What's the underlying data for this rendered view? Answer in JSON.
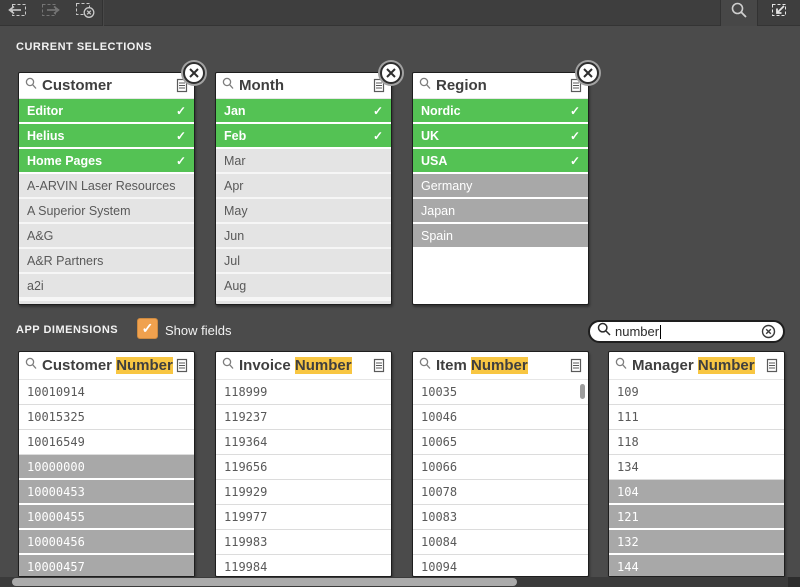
{
  "toolbar": {
    "icons": [
      {
        "name": "step-back-selection-icon",
        "enabled": true
      },
      {
        "name": "step-forward-selection-icon",
        "enabled": false
      },
      {
        "name": "clear-all-selections-icon",
        "enabled": true
      },
      {
        "name": "search-icon",
        "enabled": true
      },
      {
        "name": "selections-tool-icon",
        "enabled": true
      }
    ]
  },
  "sections": {
    "current_selections": "CURRENT SELECTIONS",
    "app_dimensions": "APP DIMENSIONS"
  },
  "show_fields": {
    "label": "Show fields",
    "checked": true
  },
  "search": {
    "value": "number"
  },
  "colors": {
    "selected_green": "#54c254",
    "alternative_gray": "#e4e4e4",
    "excluded_gray": "#a8a8a8",
    "highlight_yellow": "#f8c642",
    "checkbox_orange": "#f0a14e"
  },
  "selection_boxes": [
    {
      "title_parts": [
        {
          "text": "Customer"
        }
      ],
      "partial_next_row": true,
      "items": [
        {
          "label": "Editor",
          "state": "selected"
        },
        {
          "label": "Helius",
          "state": "selected"
        },
        {
          "label": "Home Pages",
          "state": "selected"
        },
        {
          "label": "A-ARVIN Laser Resources",
          "state": "alternative"
        },
        {
          "label": "A Superior System",
          "state": "alternative"
        },
        {
          "label": "A&G",
          "state": "alternative"
        },
        {
          "label": "A&R Partners",
          "state": "alternative"
        },
        {
          "label": "a2i",
          "state": "alternative"
        }
      ]
    },
    {
      "title_parts": [
        {
          "text": "Month"
        }
      ],
      "partial_next_row": true,
      "items": [
        {
          "label": "Jan",
          "state": "selected"
        },
        {
          "label": "Feb",
          "state": "selected"
        },
        {
          "label": "Mar",
          "state": "alternative"
        },
        {
          "label": "Apr",
          "state": "alternative"
        },
        {
          "label": "May",
          "state": "alternative"
        },
        {
          "label": "Jun",
          "state": "alternative"
        },
        {
          "label": "Jul",
          "state": "alternative"
        },
        {
          "label": "Aug",
          "state": "alternative"
        }
      ]
    },
    {
      "title_parts": [
        {
          "text": "Region"
        }
      ],
      "partial_next_row": false,
      "items": [
        {
          "label": "Nordic",
          "state": "selected"
        },
        {
          "label": "UK",
          "state": "selected"
        },
        {
          "label": "USA",
          "state": "selected"
        },
        {
          "label": "Germany",
          "state": "excluded"
        },
        {
          "label": "Japan",
          "state": "excluded"
        },
        {
          "label": "Spain",
          "state": "excluded"
        }
      ]
    }
  ],
  "dimension_boxes": [
    {
      "title_parts": [
        {
          "text": "Customer "
        },
        {
          "text": "Number",
          "highlight": true
        }
      ],
      "items": [
        {
          "label": "10010914",
          "state": "possible"
        },
        {
          "label": "10015325",
          "state": "possible"
        },
        {
          "label": "10016549",
          "state": "possible"
        },
        {
          "label": "10000000",
          "state": "excluded"
        },
        {
          "label": "10000453",
          "state": "excluded"
        },
        {
          "label": "10000455",
          "state": "excluded"
        },
        {
          "label": "10000456",
          "state": "excluded"
        },
        {
          "label": "10000457",
          "state": "excluded"
        }
      ]
    },
    {
      "title_parts": [
        {
          "text": "Invoice "
        },
        {
          "text": "Number",
          "highlight": true
        }
      ],
      "items": [
        {
          "label": "118999",
          "state": "possible"
        },
        {
          "label": "119237",
          "state": "possible"
        },
        {
          "label": "119364",
          "state": "possible"
        },
        {
          "label": "119656",
          "state": "possible"
        },
        {
          "label": "119929",
          "state": "possible"
        },
        {
          "label": "119977",
          "state": "possible"
        },
        {
          "label": "119983",
          "state": "possible"
        },
        {
          "label": "119984",
          "state": "possible"
        }
      ]
    },
    {
      "title_parts": [
        {
          "text": "Item "
        },
        {
          "text": "Number",
          "highlight": true
        }
      ],
      "has_vscroll": true,
      "items": [
        {
          "label": "10035",
          "state": "possible"
        },
        {
          "label": "10046",
          "state": "possible"
        },
        {
          "label": "10065",
          "state": "possible"
        },
        {
          "label": "10066",
          "state": "possible"
        },
        {
          "label": "10078",
          "state": "possible"
        },
        {
          "label": "10083",
          "state": "possible"
        },
        {
          "label": "10084",
          "state": "possible"
        },
        {
          "label": "10094",
          "state": "possible"
        }
      ]
    },
    {
      "title_parts": [
        {
          "text": "Manager "
        },
        {
          "text": "Number",
          "highlight": true
        }
      ],
      "items": [
        {
          "label": "109",
          "state": "possible"
        },
        {
          "label": "111",
          "state": "possible"
        },
        {
          "label": "118",
          "state": "possible"
        },
        {
          "label": "134",
          "state": "possible"
        },
        {
          "label": "104",
          "state": "excluded"
        },
        {
          "label": "121",
          "state": "excluded"
        },
        {
          "label": "132",
          "state": "excluded"
        },
        {
          "label": "144",
          "state": "excluded"
        }
      ]
    }
  ]
}
